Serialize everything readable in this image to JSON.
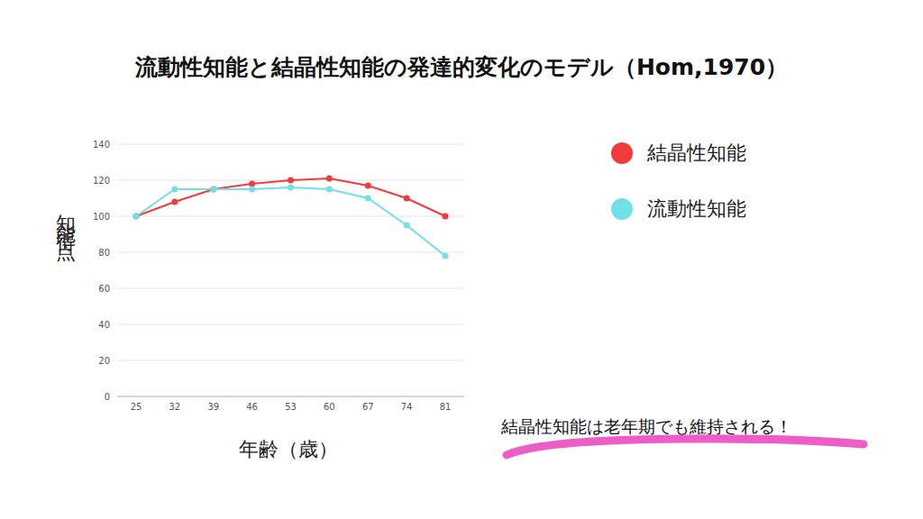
{
  "chart_data": {
    "type": "line",
    "title": "流動性知能と結晶性知能の発達的変化のモデル（Hom,1970）",
    "x_label": "年齢（歳）",
    "y_label": "知能得点",
    "categories": [
      25,
      32,
      39,
      46,
      53,
      60,
      67,
      74,
      81
    ],
    "series": [
      {
        "name": "結晶性知能",
        "color": "#f23b3b",
        "values": [
          100,
          108,
          115,
          118,
          120,
          121,
          117,
          110,
          100
        ]
      },
      {
        "name": "流動性知能",
        "color": "#6fe1e7",
        "values": [
          100,
          115,
          115,
          115,
          116,
          115,
          110,
          95,
          78
        ]
      }
    ],
    "ylim": [
      0,
      140
    ],
    "yticks": [
      0,
      20,
      40,
      60,
      80,
      100,
      120,
      140
    ],
    "grid": true,
    "legend": "right",
    "marker": "circle",
    "line_style": "solid",
    "annotations": [
      "結晶性知能は老年期でも維持される！"
    ]
  }
}
